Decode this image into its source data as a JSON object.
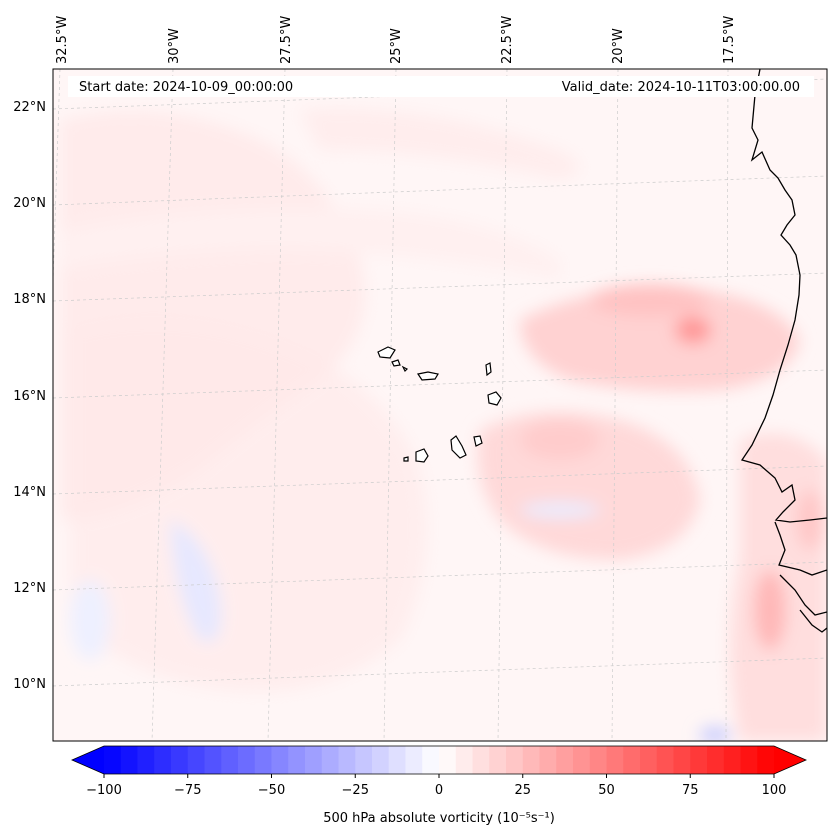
{
  "map": {
    "start_date": "Start date: 2024-10-09_00:00:00",
    "valid_date": "Valid_date: 2024-10-11T03:00:00.00",
    "lon_labels": [
      "32.5°W",
      "30°W",
      "27.5°W",
      "25°W",
      "22.5°W",
      "20°W",
      "17.5°W"
    ],
    "lat_labels": [
      "22°N",
      "20°N",
      "18°N",
      "16°N",
      "14°N",
      "12°N",
      "10°N"
    ],
    "extent": {
      "lon_min": -33.0,
      "lon_max": -16.0,
      "lat_min": 9.0,
      "lat_max": 22.8
    },
    "features": [
      "Cape Verde islands",
      "West African coastline",
      "vorticity anomaly field"
    ]
  },
  "colorbar": {
    "label": "500 hPa absolute vorticity (10⁻⁵s⁻¹)",
    "ticks": [
      "−100",
      "−75",
      "−50",
      "−25",
      "0",
      "25",
      "50",
      "75",
      "100"
    ],
    "min": -100,
    "max": 100,
    "levels": 40,
    "colormap": "bwr",
    "extend": "both"
  },
  "colors": {
    "negative": "#0000ff",
    "zero": "#ffffff",
    "positive": "#ff0000",
    "coast": "#000000"
  }
}
